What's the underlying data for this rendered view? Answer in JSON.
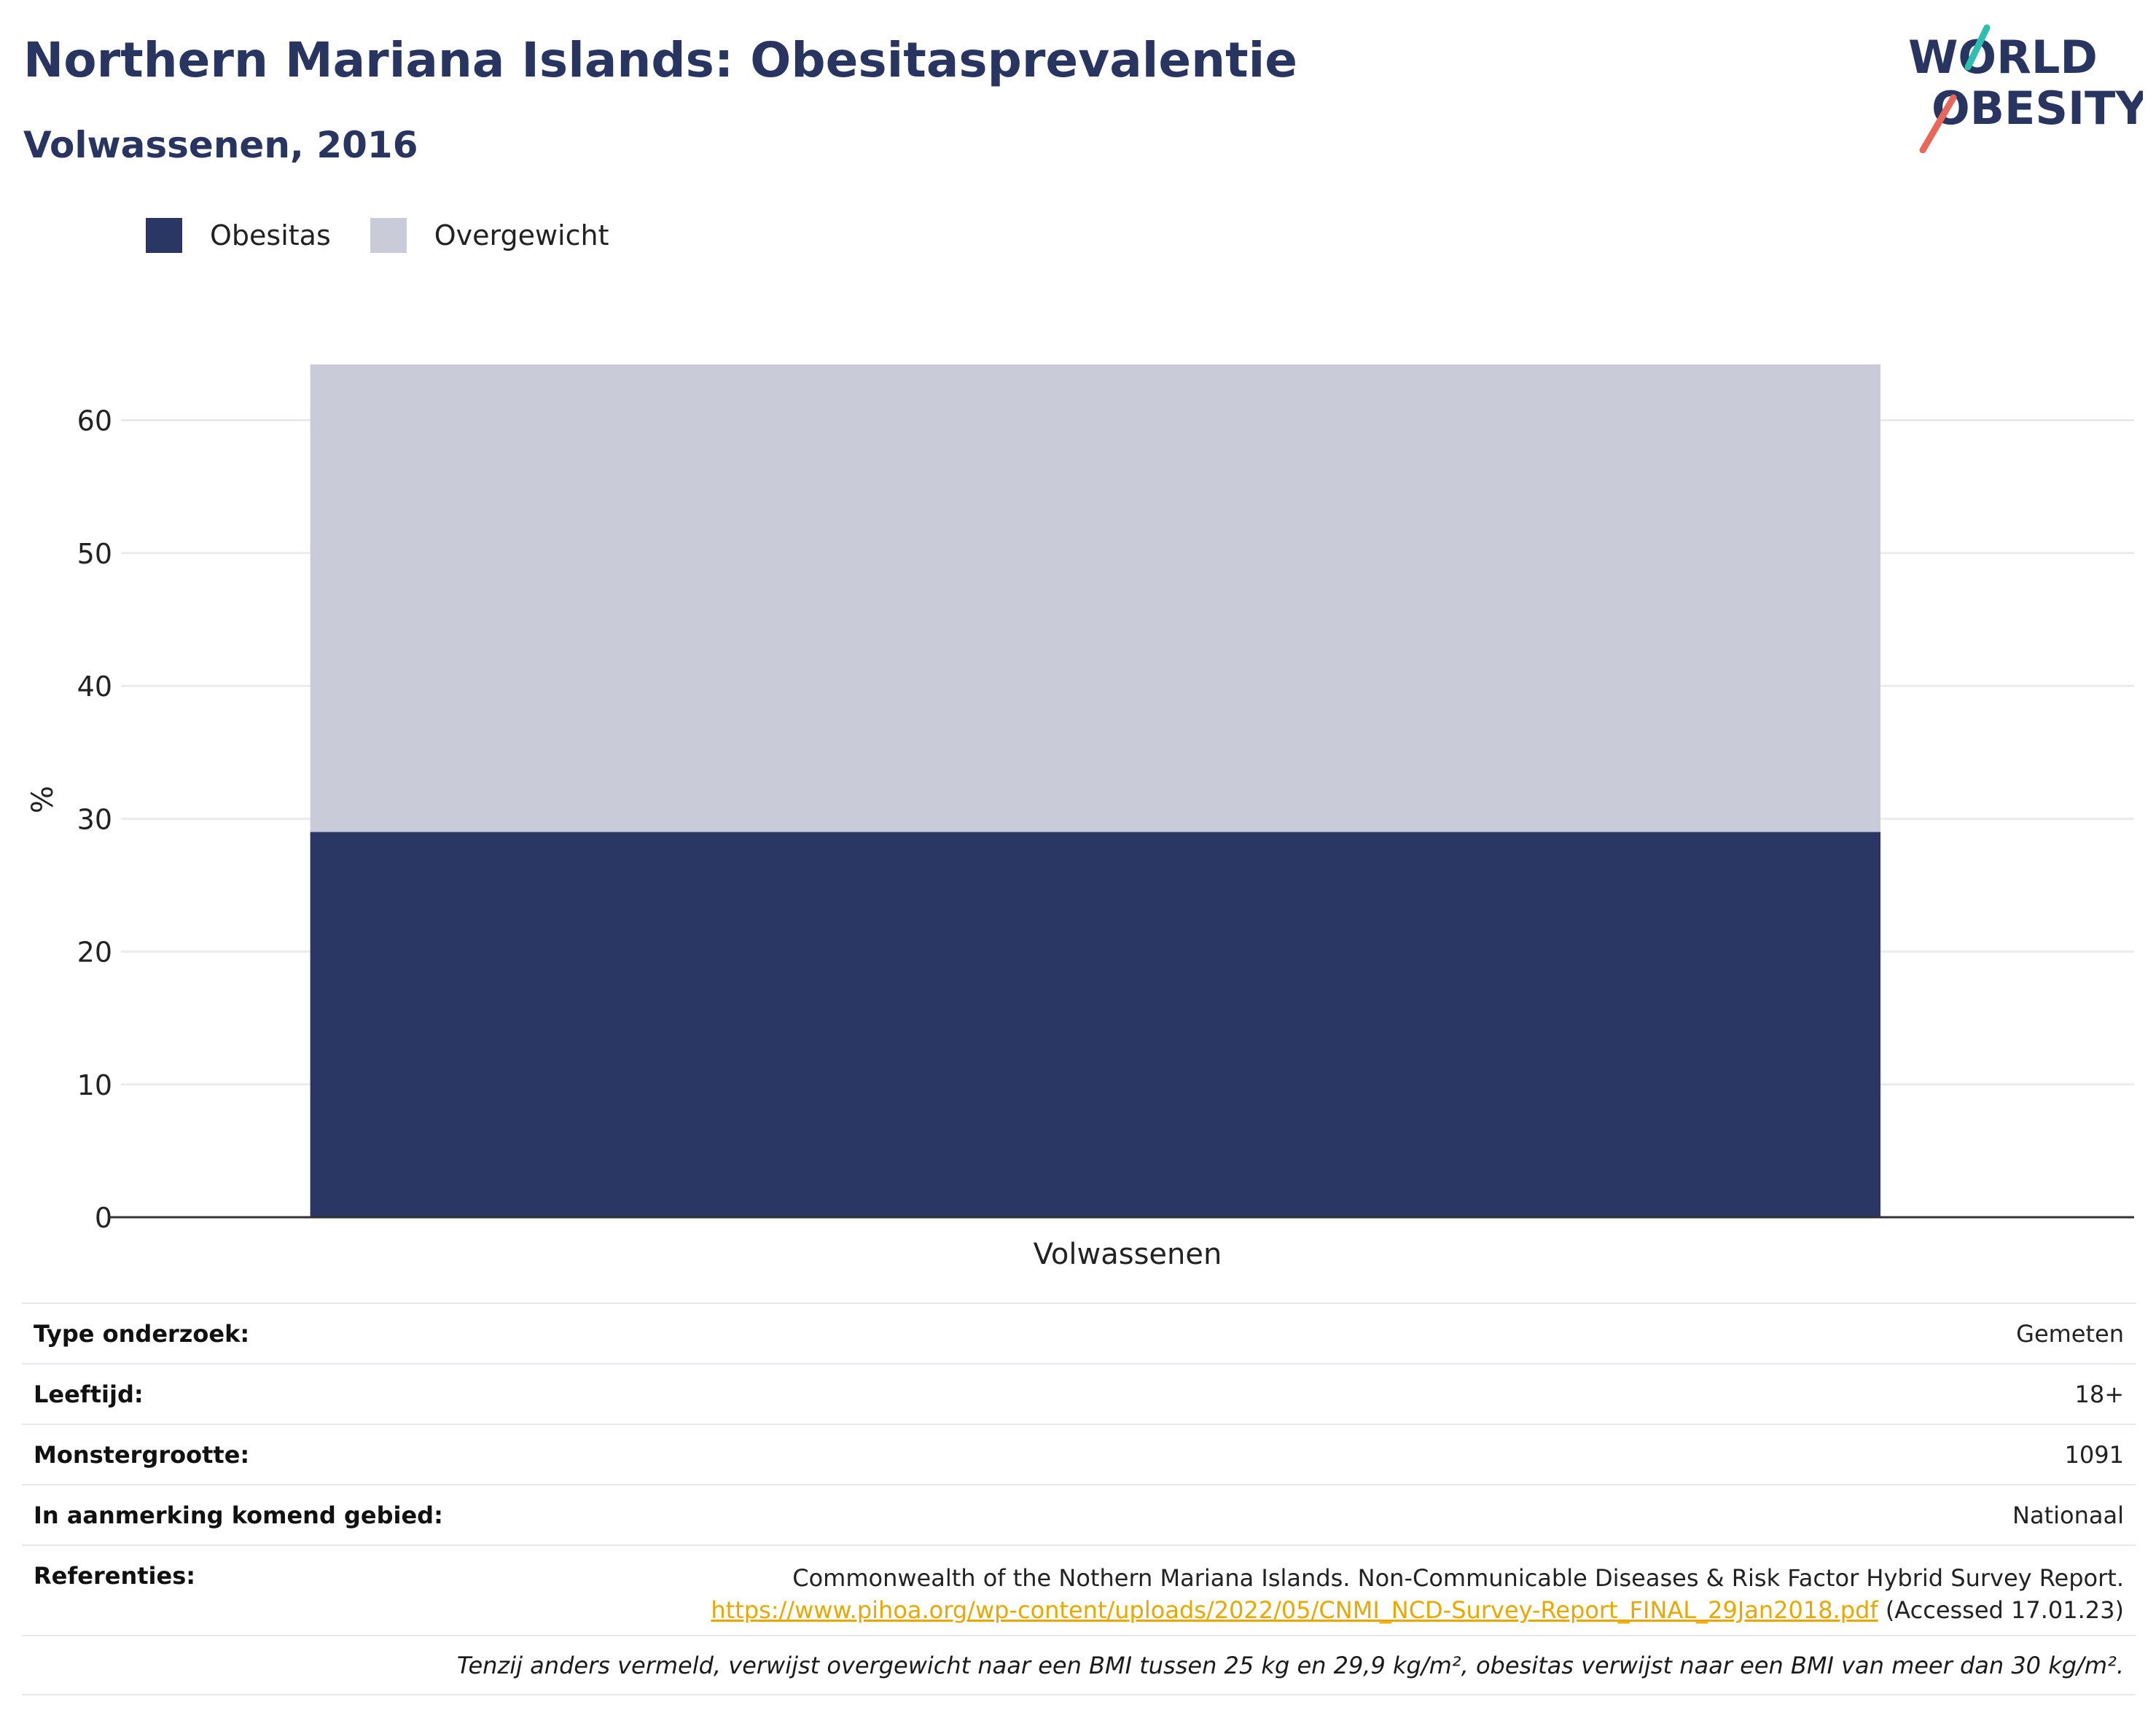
{
  "header": {
    "title": "Northern Mariana Islands: Obesitasprevalentie",
    "subtitle": "Volwassenen, 2016"
  },
  "logo": {
    "line1": "WORLD",
    "line2": "OBESITY"
  },
  "legend": [
    {
      "label": "Obesitas",
      "color": "#2a3663"
    },
    {
      "label": "Overgewicht",
      "color": "#c9ccd8"
    }
  ],
  "chart_data": {
    "type": "bar",
    "stacked": true,
    "categories": [
      "Volwassenen"
    ],
    "series": [
      {
        "name": "Obesitas",
        "values": [
          29.0
        ],
        "color": "#2a3663"
      },
      {
        "name": "Overgewicht",
        "values": [
          35.2
        ],
        "color": "#c9ccd8"
      }
    ],
    "ylabel": "%",
    "ylim": [
      0,
      64.2
    ],
    "yticks": [
      0,
      10,
      20,
      30,
      40,
      50,
      60
    ],
    "grid": true,
    "legend_position": "top-left"
  },
  "info": {
    "survey_type": {
      "label": "Type onderzoek:",
      "value": "Gemeten"
    },
    "age": {
      "label": "Leeftijd:",
      "value": "18+"
    },
    "sample_size": {
      "label": "Monstergrootte:",
      "value": "1091"
    },
    "area": {
      "label": "In aanmerking komend gebied:",
      "value": "Nationaal"
    },
    "references": {
      "label": "Referenties:",
      "line1": "Commonwealth of the Nothern Mariana Islands. Non-Communicable Diseases & Risk Factor Hybrid Survey Report.",
      "link": "https://www.pihoa.org/wp-content/uploads/2022/05/CNMI_NCD-Survey-Report_FINAL_29Jan2018.pdf",
      "accessed": " (Accessed 17.01.23)"
    },
    "note": "Tenzij anders vermeld, verwijst overgewicht naar een BMI tussen 25 kg en 29,9 kg/m², obesitas verwijst naar een BMI van meer dan 30 kg/m²."
  }
}
